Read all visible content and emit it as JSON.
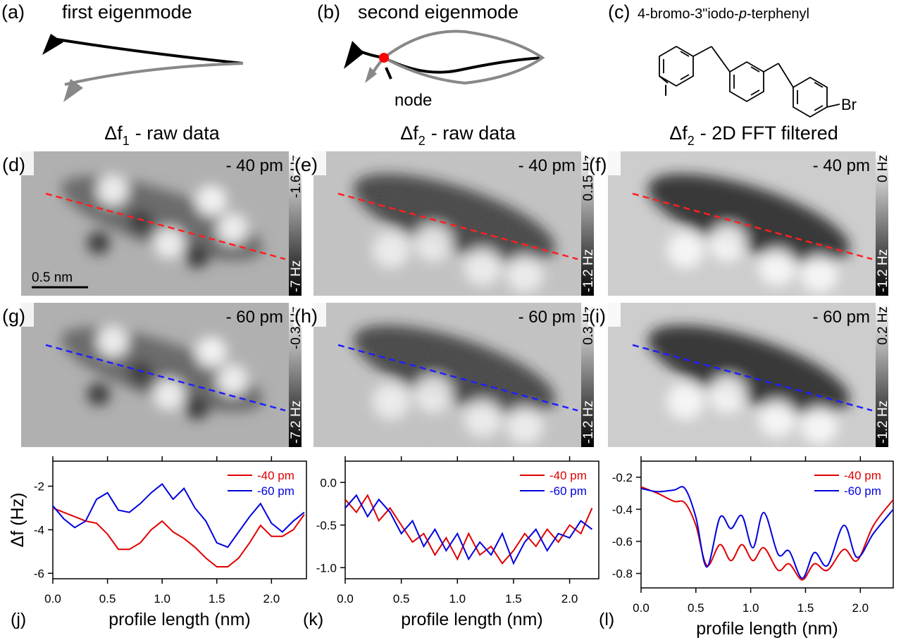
{
  "schematics": {
    "a": {
      "label": "(a)",
      "title": "first eigenmode"
    },
    "b": {
      "label": "(b)",
      "title": "second eigenmode",
      "node": "node"
    },
    "c": {
      "label": "(c)",
      "name": [
        "4-bromo-3\"iodo-",
        "p",
        "-terphenyl"
      ],
      "atoms": [
        "I",
        "Br"
      ]
    }
  },
  "column_titles": [
    {
      "main": "Δf",
      "sub": "1",
      "rest": "- raw data"
    },
    {
      "main": "Δf",
      "sub": "2",
      "rest": "- raw data"
    },
    {
      "main": "Δf",
      "sub": "2",
      "rest": "- 2D FFT filtered"
    }
  ],
  "panels": [
    {
      "label": "(d)",
      "height": "- 40 pm",
      "cbar_top": "-1.6 Hz",
      "cbar_bottom": "-7 Hz",
      "line_color": "#ff2020"
    },
    {
      "label": "(e)",
      "height": "- 40 pm",
      "cbar_top": "0.15 Hz",
      "cbar_bottom": "-1.2 Hz",
      "line_color": "#ff2020"
    },
    {
      "label": "(f)",
      "height": "- 40 pm",
      "cbar_top": "0 Hz",
      "cbar_bottom": "-1.2 Hz",
      "line_color": "#ff2020"
    },
    {
      "label": "(g)",
      "height": "- 60 pm",
      "cbar_top": "-0.3 Hz",
      "cbar_bottom": "-7.2 Hz",
      "line_color": "#2020ff"
    },
    {
      "label": "(h)",
      "height": "- 60 pm",
      "cbar_top": "0.3 Hz",
      "cbar_bottom": "-1.2 Hz",
      "line_color": "#2020ff"
    },
    {
      "label": "(i)",
      "height": "- 60 pm",
      "cbar_top": "0.2 Hz",
      "cbar_bottom": "-1.2 Hz",
      "line_color": "#2020ff"
    }
  ],
  "scale_bar": "0.5 nm",
  "chart_data": [
    {
      "type": "line",
      "panel_label": "(j)",
      "x_label": "profile length (nm)",
      "y_label": "Δf (Hz)",
      "legend": "top-right",
      "x": [
        0,
        0.1,
        0.2,
        0.3,
        0.4,
        0.5,
        0.6,
        0.7,
        0.8,
        0.9,
        1.0,
        1.1,
        1.2,
        1.3,
        1.4,
        1.5,
        1.6,
        1.7,
        1.8,
        1.9,
        2.0,
        2.1,
        2.2,
        2.3
      ],
      "series": [
        {
          "name": "-40 pm",
          "color": "#e00000",
          "values": [
            -3.0,
            -3.2,
            -3.4,
            -3.6,
            -3.7,
            -4.2,
            -4.9,
            -4.9,
            -4.6,
            -4.0,
            -3.6,
            -4.1,
            -4.4,
            -4.8,
            -5.3,
            -5.7,
            -5.7,
            -5.3,
            -4.6,
            -3.8,
            -4.3,
            -4.3,
            -4.0,
            -3.3
          ]
        },
        {
          "name": "-60 pm",
          "color": "#0000e0",
          "values": [
            -2.9,
            -3.5,
            -3.9,
            -3.6,
            -2.6,
            -2.3,
            -3.1,
            -3.2,
            -2.8,
            -2.3,
            -1.9,
            -2.6,
            -2.1,
            -3.0,
            -3.6,
            -4.6,
            -4.8,
            -4.1,
            -3.4,
            -2.8,
            -3.7,
            -4.1,
            -3.6,
            -3.2
          ]
        }
      ],
      "xlim": [
        0,
        2.32
      ],
      "ylim": [
        -6.25,
        -0.85
      ],
      "xticks": [
        {
          "value": 0,
          "label": "0.0"
        },
        0.5,
        {
          "value": 1,
          "label": "1.0"
        },
        1.5,
        {
          "value": 2,
          "label": "2.0"
        }
      ],
      "yticks": [
        -6,
        -4,
        -2
      ],
      "smooth": false
    },
    {
      "type": "line",
      "panel_label": "(k)",
      "x_label": "profile length (nm)",
      "legend": "top-right",
      "x": [
        0,
        0.1,
        0.2,
        0.3,
        0.4,
        0.5,
        0.6,
        0.7,
        0.8,
        0.9,
        1.0,
        1.1,
        1.2,
        1.3,
        1.4,
        1.5,
        1.6,
        1.7,
        1.8,
        1.9,
        2.0,
        2.1,
        2.2
      ],
      "series": [
        {
          "name": "-40 pm",
          "color": "#e00000",
          "values": [
            -0.2,
            -0.35,
            -0.15,
            -0.45,
            -0.3,
            -0.5,
            -0.7,
            -0.6,
            -0.85,
            -0.65,
            -0.9,
            -0.6,
            -0.85,
            -0.75,
            -0.95,
            -0.8,
            -0.6,
            -0.75,
            -0.55,
            -0.7,
            -0.5,
            -0.6,
            -0.3
          ]
        },
        {
          "name": "-60 pm",
          "color": "#0000e0",
          "values": [
            -0.3,
            -0.15,
            -0.4,
            -0.2,
            -0.35,
            -0.6,
            -0.45,
            -0.75,
            -0.55,
            -0.8,
            -0.6,
            -0.9,
            -0.7,
            -0.85,
            -0.6,
            -0.95,
            -0.7,
            -0.55,
            -0.8,
            -0.6,
            -0.65,
            -0.45,
            -0.55
          ]
        }
      ],
      "xlim": [
        0,
        2.26
      ],
      "ylim": [
        -1.13,
        0.25
      ],
      "xticks": [
        {
          "value": 0,
          "label": "0.0"
        },
        0.5,
        {
          "value": 1,
          "label": "1.0"
        },
        1.5,
        {
          "value": 2,
          "label": "2.0"
        }
      ],
      "yticks": [
        {
          "value": -1,
          "label": "-1.0"
        },
        -0.5,
        {
          "value": 0,
          "label": "0.0"
        }
      ],
      "smooth": false
    },
    {
      "type": "line",
      "panel_label": "(l)",
      "x_label": "profile length (nm)",
      "legend": "top-right",
      "x": [
        0,
        0.15,
        0.3,
        0.4,
        0.5,
        0.6,
        0.72,
        0.82,
        0.92,
        1.02,
        1.12,
        1.25,
        1.35,
        1.47,
        1.58,
        1.7,
        1.85,
        1.97,
        2.12,
        2.3
      ],
      "series": [
        {
          "name": "-40 pm",
          "color": "#e00000",
          "values": [
            -0.26,
            -0.3,
            -0.35,
            -0.36,
            -0.5,
            -0.75,
            -0.62,
            -0.72,
            -0.62,
            -0.72,
            -0.64,
            -0.78,
            -0.74,
            -0.84,
            -0.74,
            -0.78,
            -0.65,
            -0.72,
            -0.5,
            -0.34
          ]
        },
        {
          "name": "-60 pm",
          "color": "#0000e0",
          "values": [
            -0.27,
            -0.29,
            -0.28,
            -0.27,
            -0.45,
            -0.76,
            -0.45,
            -0.52,
            -0.44,
            -0.64,
            -0.42,
            -0.68,
            -0.66,
            -0.83,
            -0.67,
            -0.75,
            -0.5,
            -0.7,
            -0.55,
            -0.4
          ]
        }
      ],
      "xlim": [
        0,
        2.3
      ],
      "ylim": [
        -0.89,
        -0.1
      ],
      "xticks": [
        {
          "value": 0,
          "label": "0.0"
        },
        0.5,
        {
          "value": 1,
          "label": "1.0"
        },
        1.5,
        {
          "value": 2,
          "label": "2.0"
        }
      ],
      "yticks": [
        -0.8,
        -0.6,
        -0.4,
        -0.2
      ],
      "smooth": true
    }
  ]
}
